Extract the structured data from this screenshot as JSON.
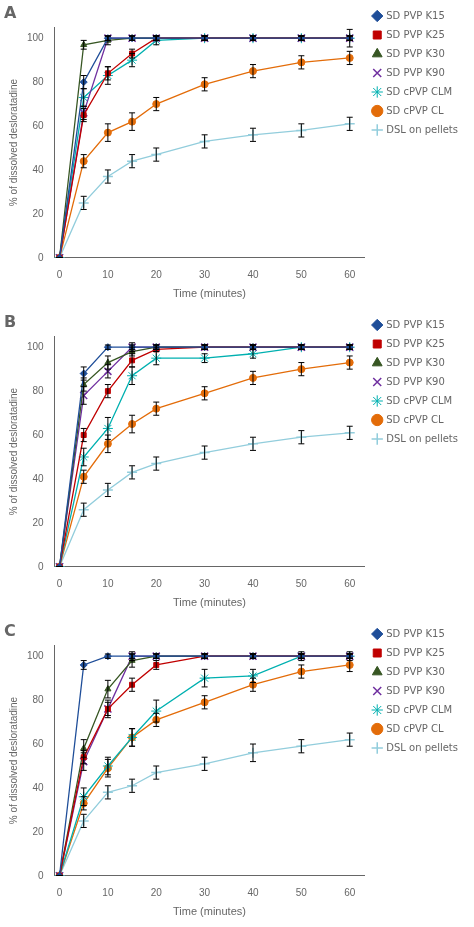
{
  "chart_data": [
    {
      "type": "line",
      "title": "A",
      "xlabel": "Time (minutes)",
      "ylabel": "% of dissolved desloratadine",
      "x": [
        0,
        5,
        10,
        15,
        20,
        30,
        40,
        50,
        60
      ],
      "xlim": [
        -1,
        63
      ],
      "xticks": [
        0,
        10,
        20,
        30,
        40,
        50,
        60
      ],
      "ylim": [
        0,
        105
      ],
      "yticks": [
        0,
        20,
        40,
        60,
        80,
        100
      ],
      "grid": false,
      "legend": "right",
      "series": [
        {
          "name": "SD PVP K15",
          "color": "#1f4e99",
          "marker": "diamond",
          "values": [
            0,
            80,
            100,
            100,
            100,
            100,
            100,
            100,
            100
          ],
          "err": [
            0,
            3,
            1,
            1,
            1,
            1,
            1,
            1,
            1
          ]
        },
        {
          "name": "SD PVP K25",
          "color": "#c00000",
          "marker": "square",
          "values": [
            0,
            65,
            84,
            93,
            100,
            100,
            100,
            100,
            100
          ],
          "err": [
            0,
            3,
            3,
            2,
            1,
            1,
            1,
            1,
            4
          ]
        },
        {
          "name": "SD PVP K30",
          "color": "#375623",
          "marker": "triangle",
          "values": [
            0,
            97,
            99,
            100,
            100,
            100,
            100,
            100,
            100
          ],
          "err": [
            0,
            2,
            2,
            1,
            1,
            1,
            1,
            1,
            1
          ]
        },
        {
          "name": "SD PVP K90",
          "color": "#7030a0",
          "marker": "x",
          "values": [
            0,
            66,
            100,
            100,
            100,
            100,
            100,
            100,
            100
          ],
          "err": [
            0,
            3,
            1,
            1,
            1,
            1,
            1,
            1,
            1
          ]
        },
        {
          "name": "SD cPVP CLM",
          "color": "#00b0b0",
          "marker": "star",
          "values": [
            0,
            73,
            83,
            90,
            99,
            100,
            100,
            100,
            100
          ],
          "err": [
            0,
            4,
            4,
            3,
            2,
            1,
            1,
            1,
            1
          ]
        },
        {
          "name": "SD cPVP CL",
          "color": "#e36c09",
          "marker": "circle",
          "values": [
            0,
            44,
            57,
            62,
            70,
            79,
            85,
            89,
            91
          ],
          "err": [
            0,
            3,
            4,
            4,
            3,
            3,
            3,
            3,
            3
          ]
        },
        {
          "name": "DSL on pellets",
          "color": "#92cddc",
          "marker": "plus",
          "values": [
            0,
            25,
            37,
            44,
            47,
            53,
            56,
            58,
            61
          ],
          "err": [
            0,
            3,
            3,
            3,
            3,
            3,
            3,
            3,
            3
          ]
        }
      ]
    },
    {
      "type": "line",
      "title": "B",
      "xlabel": "Time (minutes)",
      "ylabel": "% of dissolved desloratadine",
      "x": [
        0,
        5,
        10,
        15,
        20,
        30,
        40,
        50,
        60
      ],
      "xlim": [
        -1,
        63
      ],
      "xticks": [
        0,
        10,
        20,
        30,
        40,
        50,
        60
      ],
      "ylim": [
        0,
        105
      ],
      "yticks": [
        0,
        20,
        40,
        60,
        80,
        100
      ],
      "grid": false,
      "legend": "right",
      "series": [
        {
          "name": "SD PVP K15",
          "color": "#1f4e99",
          "marker": "diamond",
          "values": [
            0,
            88,
            100,
            100,
            100,
            100,
            100,
            100,
            100
          ],
          "err": [
            0,
            3,
            1,
            1,
            1,
            1,
            1,
            1,
            1
          ]
        },
        {
          "name": "SD PVP K25",
          "color": "#c00000",
          "marker": "square",
          "values": [
            0,
            60,
            80,
            94,
            99,
            100,
            100,
            100,
            100
          ],
          "err": [
            0,
            3,
            3,
            3,
            1,
            1,
            1,
            1,
            1
          ]
        },
        {
          "name": "SD PVP K30",
          "color": "#375623",
          "marker": "triangle",
          "values": [
            0,
            83,
            93,
            98,
            100,
            100,
            100,
            100,
            100
          ],
          "err": [
            0,
            3,
            3,
            2,
            1,
            1,
            1,
            1,
            1
          ]
        },
        {
          "name": "SD PVP K90",
          "color": "#7030a0",
          "marker": "x",
          "values": [
            0,
            78,
            89,
            100,
            100,
            100,
            100,
            100,
            100
          ],
          "err": [
            0,
            4,
            3,
            2,
            1,
            1,
            1,
            1,
            1
          ]
        },
        {
          "name": "SD cPVP CLM",
          "color": "#00b0b0",
          "marker": "star",
          "values": [
            0,
            50,
            63,
            87,
            95,
            95,
            97,
            100,
            100
          ],
          "err": [
            0,
            4,
            5,
            4,
            3,
            2,
            2,
            1,
            1
          ]
        },
        {
          "name": "SD cPVP CL",
          "color": "#e36c09",
          "marker": "circle",
          "values": [
            0,
            41,
            56,
            65,
            72,
            79,
            86,
            90,
            93
          ],
          "err": [
            0,
            3,
            4,
            4,
            3,
            3,
            3,
            3,
            3
          ]
        },
        {
          "name": "DSL on pellets",
          "color": "#92cddc",
          "marker": "plus",
          "values": [
            0,
            26,
            35,
            43,
            47,
            52,
            56,
            59,
            61
          ],
          "err": [
            0,
            3,
            3,
            3,
            3,
            3,
            3,
            3,
            3
          ]
        }
      ]
    },
    {
      "type": "line",
      "title": "C",
      "xlabel": "Time (minutes)",
      "ylabel": "% of dissolved desloratadine",
      "x": [
        0,
        5,
        10,
        15,
        20,
        30,
        40,
        50,
        60
      ],
      "xlim": [
        -1,
        63
      ],
      "xticks": [
        0,
        10,
        20,
        30,
        40,
        50,
        60
      ],
      "ylim": [
        0,
        105
      ],
      "yticks": [
        0,
        20,
        40,
        60,
        80,
        100
      ],
      "grid": false,
      "legend": "right",
      "series": [
        {
          "name": "SD PVP K15",
          "color": "#1f4e99",
          "marker": "diamond",
          "values": [
            0,
            96,
            100,
            100,
            100,
            100,
            100,
            100,
            100
          ],
          "err": [
            0,
            2,
            1,
            1,
            1,
            1,
            1,
            1,
            1
          ]
        },
        {
          "name": "SD PVP K25",
          "color": "#c00000",
          "marker": "square",
          "values": [
            0,
            54,
            76,
            87,
            96,
            100,
            100,
            100,
            100
          ],
          "err": [
            0,
            3,
            3,
            3,
            2,
            1,
            1,
            1,
            1
          ]
        },
        {
          "name": "SD PVP K30",
          "color": "#375623",
          "marker": "triangle",
          "values": [
            0,
            58,
            85,
            98,
            100,
            100,
            100,
            100,
            100
          ],
          "err": [
            0,
            4,
            4,
            3,
            1,
            1,
            1,
            1,
            1
          ]
        },
        {
          "name": "SD PVP K90",
          "color": "#7030a0",
          "marker": "x",
          "values": [
            0,
            52,
            76,
            100,
            100,
            100,
            100,
            100,
            100
          ],
          "err": [
            0,
            4,
            4,
            2,
            1,
            1,
            1,
            1,
            1
          ]
        },
        {
          "name": "SD cPVP CLM",
          "color": "#00b0b0",
          "marker": "star",
          "values": [
            0,
            36,
            50,
            63,
            75,
            90,
            91,
            100,
            100
          ],
          "err": [
            0,
            4,
            4,
            4,
            5,
            4,
            3,
            2,
            2
          ]
        },
        {
          "name": "SD cPVP CL",
          "color": "#e36c09",
          "marker": "circle",
          "values": [
            0,
            33,
            49,
            63,
            71,
            79,
            87,
            93,
            96
          ],
          "err": [
            0,
            3,
            4,
            4,
            3,
            3,
            3,
            3,
            3
          ]
        },
        {
          "name": "DSL on pellets",
          "color": "#92cddc",
          "marker": "plus",
          "values": [
            0,
            25,
            38,
            41,
            47,
            51,
            56,
            59,
            62
          ],
          "err": [
            0,
            3,
            3,
            3,
            3,
            3,
            4,
            3,
            3
          ]
        }
      ]
    }
  ]
}
